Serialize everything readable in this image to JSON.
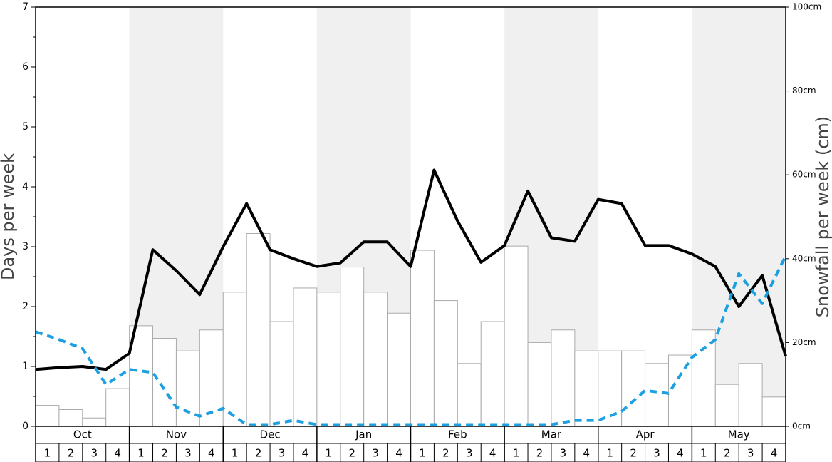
{
  "chart_data": {
    "type": "bar_line",
    "ylabel": "Days per week",
    "y2label": "Snowfall per week (cm)",
    "months": [
      "Oct",
      "Nov",
      "Dec",
      "Jan",
      "Feb",
      "Mar",
      "Apr",
      "May"
    ],
    "categories": [
      "1",
      "2",
      "3",
      "4",
      "1",
      "2",
      "3",
      "4",
      "1",
      "2",
      "3",
      "4",
      "1",
      "2",
      "3",
      "4",
      "1",
      "2",
      "3",
      "4",
      "1",
      "2",
      "3",
      "4",
      "1",
      "2",
      "3",
      "4",
      "1",
      "2",
      "3",
      "4"
    ],
    "ylim": [
      0,
      7
    ],
    "yticks": [
      0,
      1,
      2,
      3,
      4,
      5,
      6,
      7
    ],
    "y2lim": [
      0,
      100
    ],
    "y2ticks": [
      {
        "value": 0,
        "label": "0cm"
      },
      {
        "value": 20,
        "label": "20cm"
      },
      {
        "value": 40,
        "label": "40cm"
      },
      {
        "value": 60,
        "label": "60cm"
      },
      {
        "value": 80,
        "label": "80cm"
      },
      {
        "value": 100,
        "label": "100cm"
      }
    ],
    "xlim": [
      0,
      32
    ],
    "bars": {
      "axis": "y2",
      "color": "#ffffff",
      "values": [
        5,
        4,
        2,
        9,
        24,
        21,
        18,
        23,
        32,
        46,
        25,
        33,
        32,
        38,
        32,
        27,
        42,
        30,
        15,
        25,
        43,
        20,
        23,
        18,
        18,
        18,
        15,
        17,
        23,
        10,
        15,
        7
      ]
    },
    "lines": [
      {
        "color": "#000000",
        "dashed": false,
        "x": [
          0,
          1,
          2,
          3,
          4,
          5,
          6,
          7,
          8,
          9,
          10,
          11,
          12,
          13,
          14,
          15,
          16,
          17,
          18,
          19,
          20,
          21,
          22,
          23,
          24,
          25,
          26,
          27,
          28,
          29,
          30,
          31,
          32
        ],
        "values": [
          0.95,
          0.98,
          1.0,
          0.95,
          1.22,
          2.95,
          2.6,
          2.2,
          3.0,
          3.72,
          2.95,
          2.8,
          2.67,
          2.73,
          3.08,
          3.08,
          2.67,
          4.28,
          3.43,
          2.74,
          3.02,
          3.93,
          3.15,
          3.09,
          3.79,
          3.72,
          3.02,
          3.02,
          2.88,
          2.67,
          2.0,
          2.52,
          1.17
        ]
      },
      {
        "color": "#1ea0e0",
        "dashed": true,
        "x": [
          0,
          1,
          2,
          3,
          4,
          5,
          6,
          7,
          8,
          9,
          10,
          11,
          12,
          13,
          14,
          15,
          16,
          17,
          18,
          19,
          20,
          21,
          22,
          23,
          24,
          25,
          26,
          27,
          28,
          29,
          30,
          31,
          32
        ],
        "values": [
          1.58,
          1.45,
          1.3,
          0.7,
          0.95,
          0.9,
          0.32,
          0.17,
          0.3,
          0.03,
          0.03,
          0.1,
          0.03,
          0.03,
          0.03,
          0.03,
          0.03,
          0.03,
          0.03,
          0.03,
          0.03,
          0.03,
          0.03,
          0.1,
          0.1,
          0.25,
          0.6,
          0.55,
          1.15,
          1.45,
          2.55,
          2.05,
          2.85
        ]
      }
    ]
  }
}
